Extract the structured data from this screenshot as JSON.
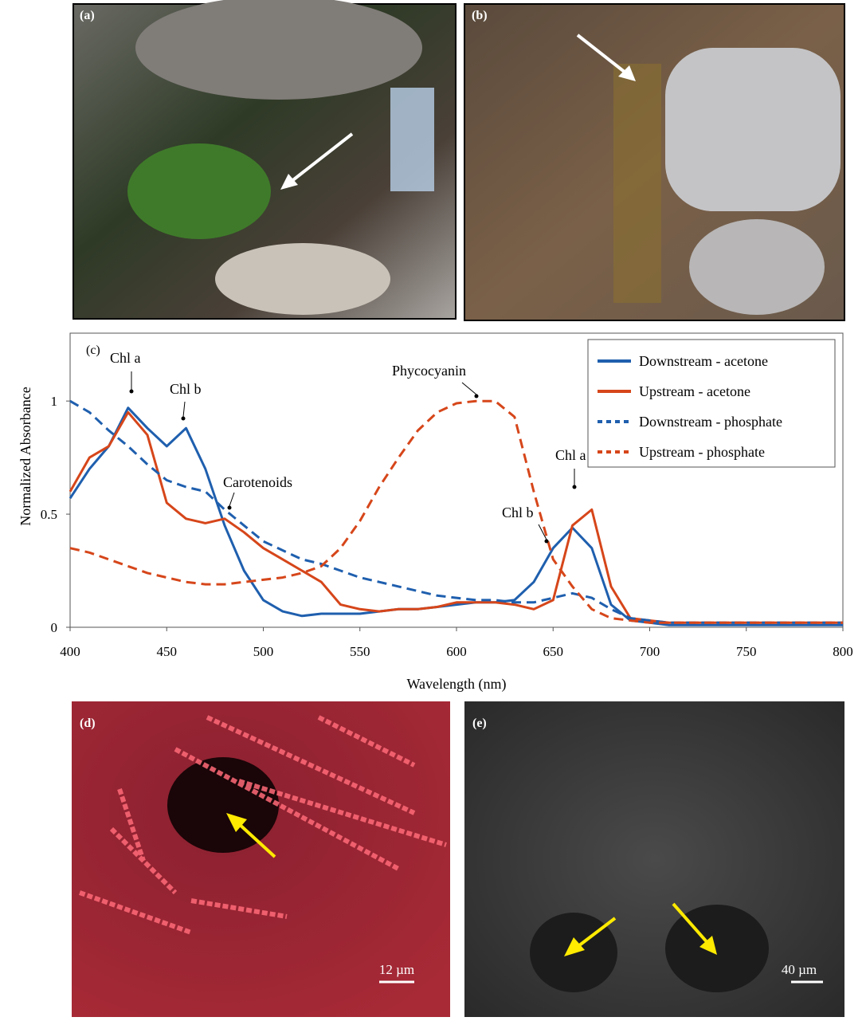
{
  "panels": {
    "a": {
      "label": "(a)"
    },
    "b": {
      "label": "(b)"
    },
    "d": {
      "label": "(d)",
      "scale": "12 µm"
    },
    "e": {
      "label": "(e)",
      "scale": "40 µm"
    }
  },
  "chart_data": {
    "type": "line",
    "panel_label": "(c)",
    "xlabel": "Wavelength (nm)",
    "ylabel": "Normalized Absorbance",
    "xlim": [
      400,
      800
    ],
    "ylim": [
      0,
      1.3
    ],
    "xticks": [
      400,
      450,
      500,
      550,
      600,
      650,
      700,
      750,
      800
    ],
    "yticks": [
      0,
      0.5,
      1
    ],
    "x": [
      400,
      410,
      420,
      430,
      440,
      450,
      460,
      470,
      480,
      490,
      500,
      510,
      520,
      530,
      540,
      550,
      560,
      570,
      580,
      590,
      600,
      610,
      620,
      630,
      640,
      650,
      660,
      670,
      680,
      690,
      700,
      710,
      720,
      730,
      740,
      750,
      760,
      770,
      780,
      790,
      800
    ],
    "series": [
      {
        "name": "Downstream - acetone",
        "color": "#1f5fae",
        "style": "solid",
        "values": [
          0.57,
          0.7,
          0.8,
          0.97,
          0.88,
          0.8,
          0.88,
          0.7,
          0.45,
          0.25,
          0.12,
          0.07,
          0.05,
          0.06,
          0.06,
          0.06,
          0.07,
          0.08,
          0.08,
          0.09,
          0.1,
          0.11,
          0.11,
          0.12,
          0.2,
          0.35,
          0.44,
          0.35,
          0.1,
          0.03,
          0.02,
          0.01,
          0.01,
          0.01,
          0.01,
          0.01,
          0.01,
          0.01,
          0.01,
          0.01,
          0.01
        ]
      },
      {
        "name": "Upstream - acetone",
        "color": "#d6461a",
        "style": "solid",
        "values": [
          0.6,
          0.75,
          0.8,
          0.95,
          0.85,
          0.55,
          0.48,
          0.46,
          0.48,
          0.42,
          0.35,
          0.3,
          0.25,
          0.2,
          0.1,
          0.08,
          0.07,
          0.08,
          0.08,
          0.09,
          0.11,
          0.11,
          0.11,
          0.1,
          0.08,
          0.12,
          0.45,
          0.52,
          0.18,
          0.04,
          0.03,
          0.02,
          0.02,
          0.02,
          0.02,
          0.02,
          0.02,
          0.02,
          0.02,
          0.02,
          0.02
        ]
      },
      {
        "name": "Downstream - phosphate",
        "color": "#1f5fae",
        "style": "dashed",
        "values": [
          1.0,
          0.95,
          0.87,
          0.8,
          0.72,
          0.65,
          0.62,
          0.6,
          0.52,
          0.45,
          0.38,
          0.34,
          0.3,
          0.28,
          0.25,
          0.22,
          0.2,
          0.18,
          0.16,
          0.14,
          0.13,
          0.12,
          0.12,
          0.11,
          0.11,
          0.13,
          0.15,
          0.13,
          0.08,
          0.04,
          0.03,
          0.02,
          0.02,
          0.02,
          0.02,
          0.02,
          0.02,
          0.02,
          0.02,
          0.02,
          0.02
        ]
      },
      {
        "name": "Upstream - phosphate",
        "color": "#d6461a",
        "style": "dashed",
        "values": [
          0.35,
          0.33,
          0.3,
          0.27,
          0.24,
          0.22,
          0.2,
          0.19,
          0.19,
          0.2,
          0.21,
          0.22,
          0.24,
          0.27,
          0.35,
          0.47,
          0.62,
          0.75,
          0.87,
          0.95,
          0.99,
          1.0,
          1.0,
          0.93,
          0.6,
          0.3,
          0.18,
          0.08,
          0.04,
          0.03,
          0.02,
          0.02,
          0.02,
          0.02,
          0.02,
          0.02,
          0.02,
          0.02,
          0.02,
          0.02,
          0.02
        ]
      }
    ],
    "annotations": [
      {
        "text": "Chl a"
      },
      {
        "text": "Chl b"
      },
      {
        "text": "Carotenoids"
      },
      {
        "text": "Phycocyanin"
      },
      {
        "text": "Chl b"
      },
      {
        "text": "Chl a"
      }
    ]
  }
}
